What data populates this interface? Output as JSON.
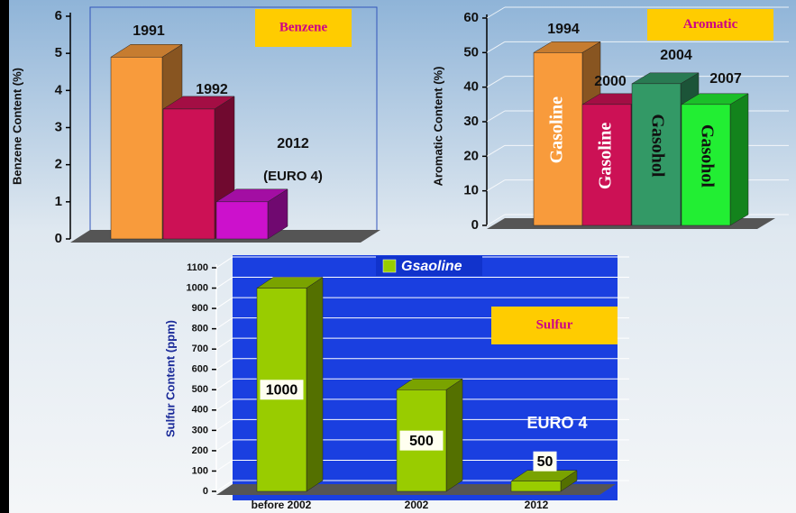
{
  "chart_data": [
    {
      "type": "bar",
      "title": "Benzene",
      "y_label": "Benzene Content (%)",
      "categories": [
        "1991",
        "1992",
        "2012"
      ],
      "values": [
        4.9,
        3.5,
        1.0
      ],
      "colors": [
        "#f89b3c",
        "#cc1155",
        "#cc11cc"
      ],
      "annotation": "(EURO 4)",
      "ylim": [
        0,
        6
      ],
      "yticks": [
        0,
        1,
        2,
        3,
        4,
        5,
        6
      ],
      "grid": false
    },
    {
      "type": "bar",
      "title": "Aromatic",
      "y_label": "Aromatic Content (%)",
      "categories": [
        "1994",
        "2000",
        "2004",
        "2007"
      ],
      "values": [
        50,
        35,
        41,
        35
      ],
      "colors": [
        "#f89b3c",
        "#cc1155",
        "#339966",
        "#22ee33"
      ],
      "bar_labels": [
        "Gasoline",
        "Gasoline",
        "Gasohol",
        "Gasohol"
      ],
      "ylim": [
        0,
        60
      ],
      "yticks": [
        0,
        10,
        20,
        30,
        40,
        50,
        60
      ],
      "grid": true
    },
    {
      "type": "bar",
      "title": "Sulfur",
      "y_label": "Sulfur Content (ppm)",
      "categories": [
        "before 2002",
        "2002",
        "2012"
      ],
      "series": [
        {
          "name": "Gsaoline",
          "color": "#99cc00",
          "values": [
            1000,
            500,
            50
          ]
        }
      ],
      "annotation": "EURO 4",
      "ylim": [
        0,
        1100
      ],
      "yticks": [
        0,
        100,
        200,
        300,
        400,
        500,
        600,
        700,
        800,
        900,
        1000,
        1100
      ],
      "grid": true
    }
  ]
}
